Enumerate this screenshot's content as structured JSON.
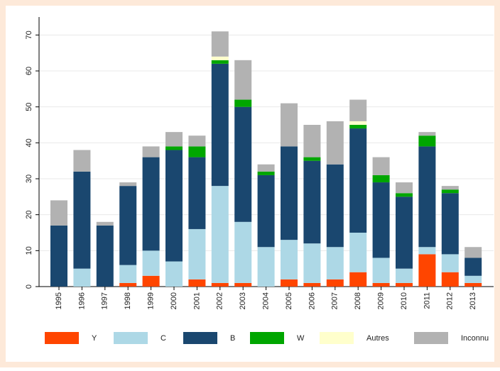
{
  "chart_data": {
    "type": "stacked_bar",
    "categories": [
      "1995",
      "1996",
      "1997",
      "1998",
      "1999",
      "2000",
      "2001",
      "2002",
      "2003",
      "2004",
      "2005",
      "2006",
      "2007",
      "2008",
      "2009",
      "2010",
      "2011",
      "2012",
      "2013"
    ],
    "series": [
      {
        "name": "Y",
        "color": "#ff4500",
        "values": [
          0,
          0,
          0,
          1,
          3,
          0,
          2,
          1,
          1,
          0,
          2,
          1,
          2,
          4,
          1,
          1,
          9,
          4,
          1
        ]
      },
      {
        "name": "C",
        "color": "#add8e6",
        "values": [
          0,
          5,
          0,
          5,
          7,
          7,
          14,
          27,
          17,
          11,
          11,
          11,
          9,
          11,
          7,
          4,
          2,
          5,
          2
        ]
      },
      {
        "name": "B",
        "color": "#1a476f",
        "values": [
          17,
          27,
          17,
          22,
          26,
          31,
          20,
          34,
          32,
          20,
          26,
          23,
          23,
          29,
          21,
          20,
          28,
          17,
          5
        ]
      },
      {
        "name": "W",
        "color": "#00a600",
        "values": [
          0,
          0,
          0,
          0,
          0,
          1,
          3,
          1,
          2,
          1,
          0,
          1,
          0,
          1,
          2,
          1,
          3,
          1,
          0
        ]
      },
      {
        "name": "Autres",
        "color": "#ffffcc",
        "values": [
          0,
          0,
          0,
          0,
          0,
          0,
          0,
          1,
          0,
          0,
          0,
          0,
          0,
          1,
          0,
          0,
          0,
          0,
          0
        ]
      },
      {
        "name": "Inconnu",
        "color": "#b2b2b2",
        "values": [
          7,
          6,
          1,
          1,
          3,
          4,
          3,
          7,
          11,
          2,
          12,
          9,
          12,
          6,
          5,
          3,
          1,
          1,
          3
        ]
      }
    ],
    "ylim": [
      0,
      75
    ],
    "yticks": [
      0,
      10,
      20,
      30,
      40,
      50,
      60,
      70
    ],
    "grid": true,
    "legend": "bottom"
  }
}
